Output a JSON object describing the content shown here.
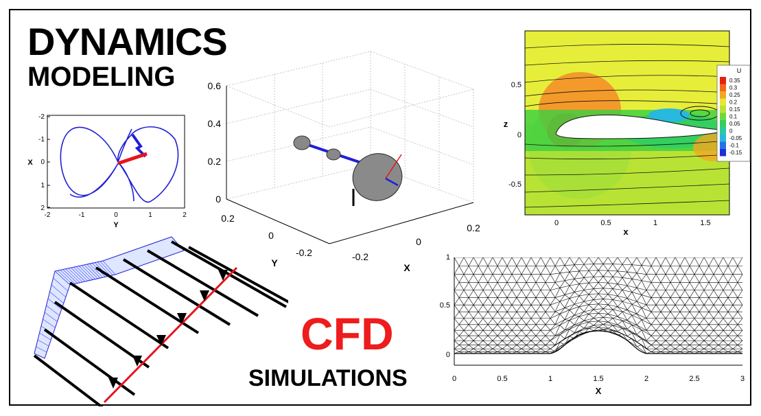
{
  "headings": {
    "dynamics": "DYNAMICS",
    "modeling": "MODELING",
    "cfd": "CFD",
    "simulations": "SIMULATIONS"
  },
  "colors": {
    "accent_red": "#ee1c1c",
    "trajectory_blue": "#1f1fd6",
    "vector_red": "#e8131b",
    "flow_green": "#39cf42",
    "flow_yellow": "#e6ee3a",
    "flow_orange": "#f39a2b"
  },
  "trajectory_plot": {
    "xlabel": "Y",
    "ylabel": "X",
    "y_ticks": [
      "-2",
      "-1",
      "0",
      "1",
      "2"
    ],
    "x_ticks": [
      "-2",
      "-1",
      "0",
      "1",
      "2"
    ]
  },
  "plot_3d": {
    "z_ticks": [
      "0",
      "0.2",
      "0.4",
      "0.6"
    ],
    "y_ticks": [
      "0.2",
      "0",
      "-0.2"
    ],
    "x_ticks": [
      "-0.2",
      "0",
      "0.2"
    ],
    "ylabel": "Y",
    "xlabel": "X"
  },
  "flow_plot": {
    "xlabel": "x",
    "zlabel": "z",
    "x_ticks": [
      "0",
      "0.5",
      "1",
      "1.5"
    ],
    "z_ticks": [
      "0.5",
      "0",
      "-0.5"
    ],
    "colorbar_title": "U",
    "colorbar_labels": [
      "0.35",
      "0.3",
      "0.25",
      "0.2",
      "0.15",
      "0.1",
      "0.05",
      "0",
      "-0.05",
      "-0.1",
      "-0.15"
    ],
    "colorbar_colors": [
      "#e8200f",
      "#f06a18",
      "#f5a623",
      "#e9e635",
      "#b8e335",
      "#6fd93a",
      "#34cf5e",
      "#2bc9a0",
      "#27b8de",
      "#2472e8",
      "#1f2ddb"
    ]
  },
  "mesh_plot": {
    "xlabel": "X",
    "x_ticks": [
      "0",
      "0.5",
      "1",
      "1.5",
      "2",
      "2.5",
      "3"
    ],
    "y_ticks": [
      "0",
      "0.5",
      "1"
    ]
  }
}
